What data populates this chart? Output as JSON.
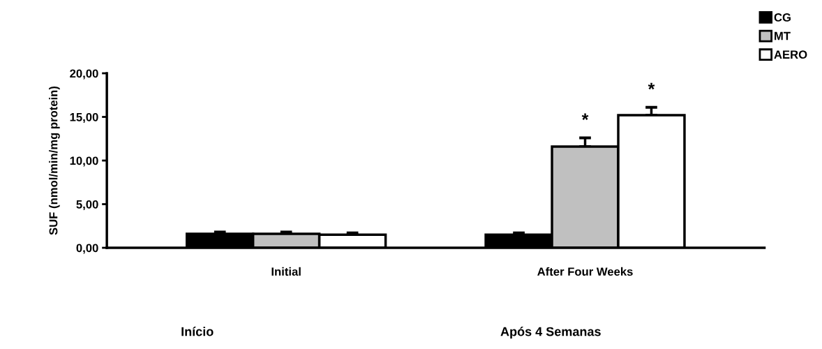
{
  "chart_data": {
    "type": "bar",
    "ylabel": "SUF (nmol/min/mg protein)",
    "categories": [
      "Initial",
      "After Four Weeks"
    ],
    "series": [
      {
        "name": "CG",
        "color": "#000000",
        "values": [
          1.6,
          1.5
        ],
        "errors": [
          0.2,
          0.2
        ]
      },
      {
        "name": "MT",
        "color": "#c0c0c0",
        "values": [
          1.6,
          11.6
        ],
        "errors": [
          0.2,
          1.0
        ]
      },
      {
        "name": "AERO",
        "color": "#ffffff",
        "values": [
          1.5,
          15.2
        ],
        "errors": [
          0.2,
          0.9
        ]
      }
    ],
    "ylim": [
      0,
      20
    ],
    "yticks": [
      {
        "value": 0,
        "label": "0,00"
      },
      {
        "value": 5,
        "label": "5,00"
      },
      {
        "value": 10,
        "label": "10,00"
      },
      {
        "value": 15,
        "label": "15,00"
      },
      {
        "value": 20,
        "label": "20,00"
      }
    ],
    "grid": false,
    "legend": "top right",
    "annotations": [
      "*",
      "*",
      "Início",
      "Após 4 Semanas"
    ]
  }
}
